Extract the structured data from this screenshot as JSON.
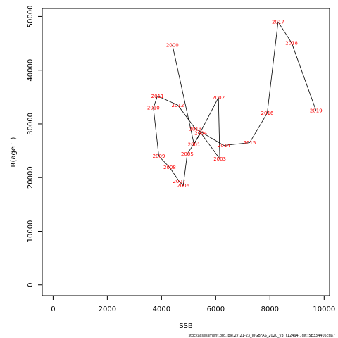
{
  "chart_data": {
    "type": "line",
    "xlabel": "SSB",
    "ylabel": "R(age 1)",
    "xlim": [
      -400,
      10200
    ],
    "ylim": [
      -2000,
      51500
    ],
    "xticks": [
      0,
      2000,
      4000,
      6000,
      8000,
      10000
    ],
    "yticks": [
      0,
      10000,
      20000,
      30000,
      40000,
      50000
    ],
    "grid": false,
    "series": [
      {
        "line_color": "#000000",
        "label_color": "#ff0000",
        "points": [
          {
            "label": "2000",
            "x": 4400,
            "y": 44700
          },
          {
            "label": "2001",
            "x": 5200,
            "y": 26200
          },
          {
            "label": "2002",
            "x": 6100,
            "y": 34900
          },
          {
            "label": "2003",
            "x": 6150,
            "y": 23500
          },
          {
            "label": "2004",
            "x": 5450,
            "y": 28300
          },
          {
            "label": "2005",
            "x": 4950,
            "y": 24400
          },
          {
            "label": "2006",
            "x": 4800,
            "y": 18500
          },
          {
            "label": "2007",
            "x": 4650,
            "y": 19300
          },
          {
            "label": "2008",
            "x": 4300,
            "y": 21900
          },
          {
            "label": "2009",
            "x": 3900,
            "y": 24000
          },
          {
            "label": "2010",
            "x": 3700,
            "y": 33000
          },
          {
            "label": "2011",
            "x": 3850,
            "y": 35200
          },
          {
            "label": "2012",
            "x": 4600,
            "y": 33500
          },
          {
            "label": "2013",
            "x": 5250,
            "y": 29100
          },
          {
            "label": "2014",
            "x": 6300,
            "y": 26000
          },
          {
            "label": "2015",
            "x": 7250,
            "y": 26500
          },
          {
            "label": "2016",
            "x": 7900,
            "y": 32000
          },
          {
            "label": "2017",
            "x": 8300,
            "y": 49000
          },
          {
            "label": "2018",
            "x": 8800,
            "y": 45100
          },
          {
            "label": "2019",
            "x": 9700,
            "y": 32500
          }
        ]
      }
    ]
  },
  "footer": "stockassessment.org, ple.27.21-23_WGBFAS_2020_v3, r12494 , git: 5b334405cda7"
}
